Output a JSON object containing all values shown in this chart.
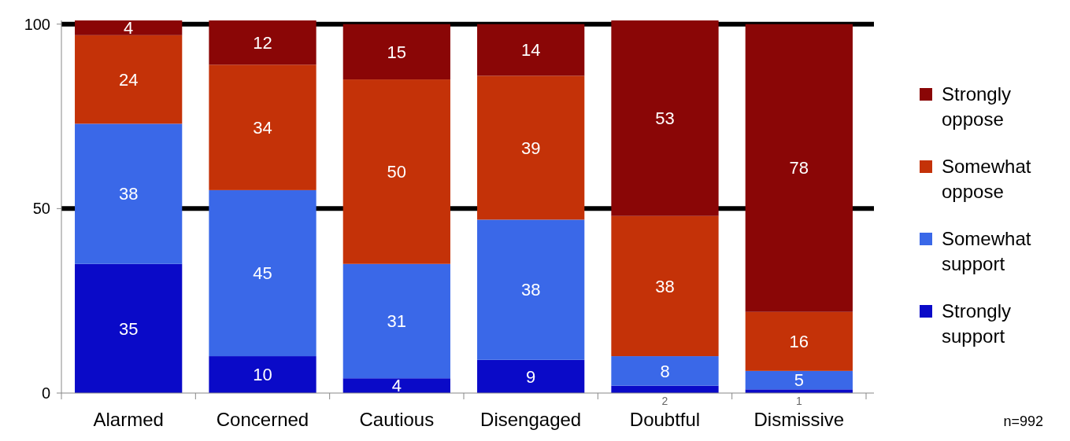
{
  "chart_data": {
    "type": "bar",
    "stacked": true,
    "categories": [
      "Alarmed",
      "Concerned",
      "Cautious",
      "Disengaged",
      "Doubtful",
      "Dismissive"
    ],
    "series": [
      {
        "name": "Strongly support",
        "color": "#0a0ac8",
        "values": [
          35,
          10,
          4,
          9,
          2,
          1
        ]
      },
      {
        "name": "Somewhat support",
        "color": "#3a68e8",
        "values": [
          38,
          45,
          31,
          38,
          8,
          5
        ]
      },
      {
        "name": "Somewhat oppose",
        "color": "#c43208",
        "values": [
          24,
          34,
          50,
          39,
          38,
          16
        ]
      },
      {
        "name": "Strongly oppose",
        "color": "#8a0606",
        "values": [
          4,
          12,
          15,
          14,
          53,
          78
        ]
      }
    ],
    "ylim": [
      0,
      101
    ],
    "yticks": [
      0,
      50,
      100
    ],
    "grid": "y",
    "legend": "right",
    "data_labels": true,
    "annotations": [
      "n=992"
    ]
  }
}
